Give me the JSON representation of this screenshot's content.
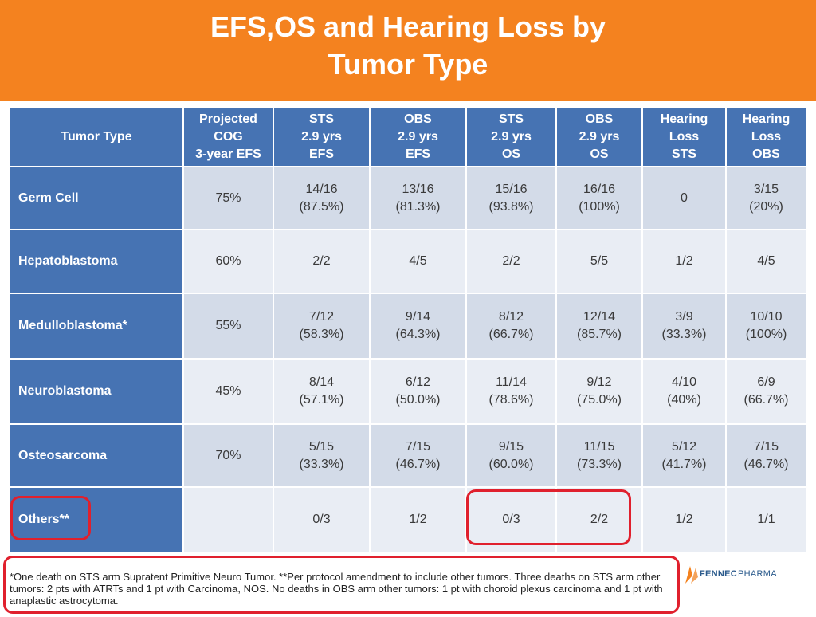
{
  "title": {
    "line1": "EFS,OS and Hearing Loss by",
    "line2": "Tumor Type"
  },
  "table": {
    "headers": [
      [
        "Tumor Type"
      ],
      [
        "Projected",
        "COG",
        "3-year EFS"
      ],
      [
        "STS",
        "2.9 yrs",
        "EFS"
      ],
      [
        "OBS",
        "2.9 yrs",
        "EFS"
      ],
      [
        "STS",
        "2.9 yrs",
        "OS"
      ],
      [
        "OBS",
        "2.9 yrs",
        "OS"
      ],
      [
        "Hearing",
        "Loss",
        "STS"
      ],
      [
        "Hearing",
        "Loss",
        "OBS"
      ]
    ],
    "rows": [
      {
        "tumor": "Germ Cell",
        "cells": [
          [
            "75%"
          ],
          [
            "14/16",
            "(87.5%)"
          ],
          [
            "13/16",
            "(81.3%)"
          ],
          [
            "15/16",
            "(93.8%)"
          ],
          [
            "16/16",
            "(100%)"
          ],
          [
            "0"
          ],
          [
            "3/15",
            "(20%)"
          ]
        ]
      },
      {
        "tumor": "Hepatoblastoma",
        "cells": [
          [
            "60%"
          ],
          [
            "2/2"
          ],
          [
            "4/5"
          ],
          [
            "2/2"
          ],
          [
            "5/5"
          ],
          [
            "1/2"
          ],
          [
            "4/5"
          ]
        ]
      },
      {
        "tumor": "Medulloblastoma*",
        "cells": [
          [
            "55%"
          ],
          [
            "7/12",
            "(58.3%)"
          ],
          [
            "9/14",
            "(64.3%)"
          ],
          [
            "8/12",
            "(66.7%)"
          ],
          [
            "12/14",
            "(85.7%)"
          ],
          [
            "3/9",
            "(33.3%)"
          ],
          [
            "10/10",
            "(100%)"
          ]
        ]
      },
      {
        "tumor": "Neuroblastoma",
        "cells": [
          [
            "45%"
          ],
          [
            "8/14",
            "(57.1%)"
          ],
          [
            "6/12",
            "(50.0%)"
          ],
          [
            "11/14",
            "(78.6%)"
          ],
          [
            "9/12",
            "(75.0%)"
          ],
          [
            "4/10",
            "(40%)"
          ],
          [
            "6/9",
            "(66.7%)"
          ]
        ]
      },
      {
        "tumor": "Osteosarcoma",
        "cells": [
          [
            "70%"
          ],
          [
            "5/15",
            "(33.3%)"
          ],
          [
            "7/15",
            "(46.7%)"
          ],
          [
            "9/15",
            "(60.0%)"
          ],
          [
            "11/15",
            "(73.3%)"
          ],
          [
            "5/12",
            "(41.7%)"
          ],
          [
            "7/15",
            "(46.7%)"
          ]
        ]
      },
      {
        "tumor": "Others**",
        "cells": [
          [
            ""
          ],
          [
            "0/3"
          ],
          [
            "1/2"
          ],
          [
            "0/3"
          ],
          [
            "2/2"
          ],
          [
            "1/2"
          ],
          [
            "1/1"
          ]
        ]
      }
    ]
  },
  "footnote": "*One death on STS arm Supratent Primitive Neuro Tumor.  **Per protocol amendment to include other tumors.  Three deaths on STS arm other tumors: 2 pts with ATRTs and 1 pt with Carcinoma, NOS.  No deaths in OBS arm other tumors: 1 pt with choroid plexus carcinoma and 1 pt with anaplastic astrocytoma.",
  "logo": {
    "bold": "FENNEC",
    "light": "PHARMA"
  },
  "colors": {
    "banner": "#f4821f",
    "header_blue": "#4673b3",
    "row_odd": "#d3dbe8",
    "row_even": "#e9edf4",
    "highlight_red": "#e0202d"
  }
}
